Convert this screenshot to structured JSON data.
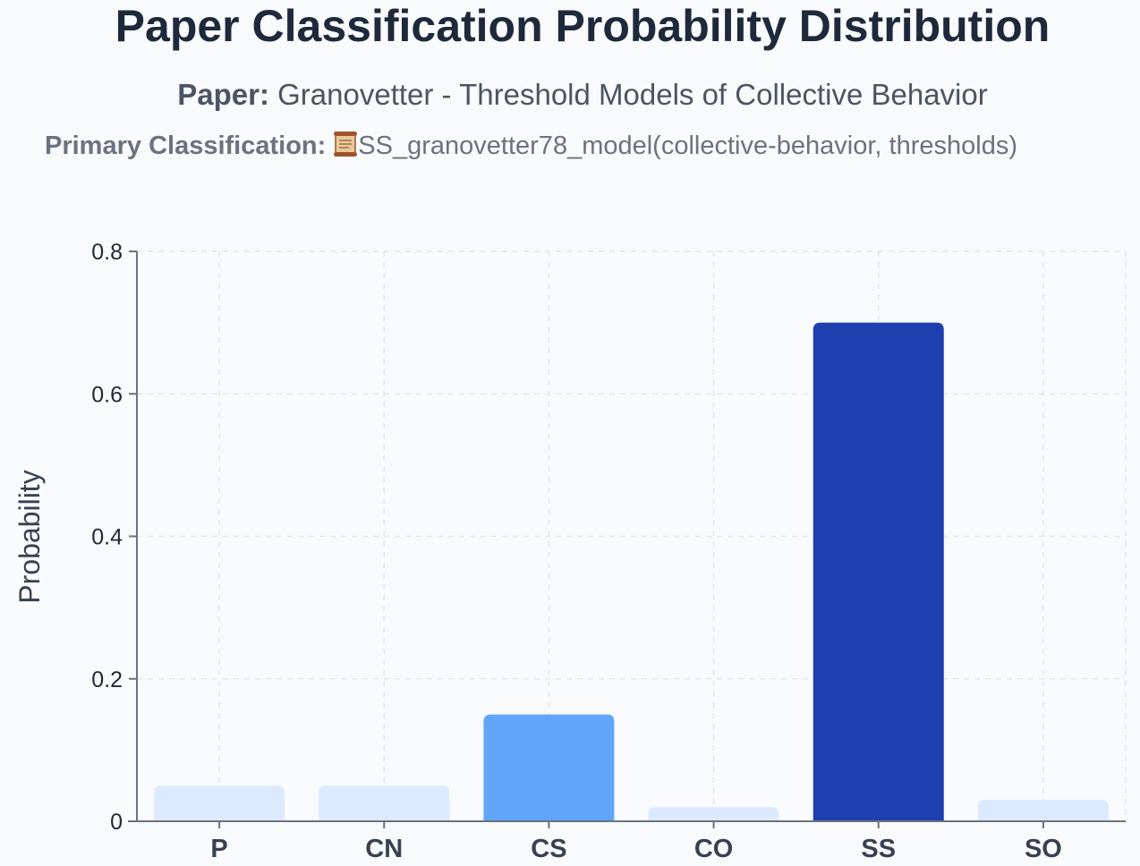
{
  "header": {
    "title": "Paper Classification Probability Distribution",
    "paper_label": "Paper:",
    "paper_name": "Granovetter - Threshold Models of Collective Behavior",
    "primary_label": "Primary Classification:",
    "primary_value": "SS_granovetter78_model(collective-behavior, thresholds)",
    "primary_icon": "scroll-icon"
  },
  "chart_data": {
    "type": "bar",
    "categories": [
      "P",
      "CN",
      "CS",
      "CO",
      "SS",
      "SO"
    ],
    "values": [
      0.05,
      0.05,
      0.15,
      0.02,
      0.7,
      0.03
    ],
    "ylabel": "Probability",
    "xlabel": "",
    "ylim": [
      0,
      0.8
    ],
    "yticks": [
      0,
      0.2,
      0.4,
      0.6,
      0.8
    ],
    "ytick_labels": [
      "0",
      "0.2",
      "0.4",
      "0.6",
      "0.8"
    ],
    "grid": true,
    "bar_colors": [
      "#dbeafe",
      "#dbeafe",
      "#60a5fa",
      "#dbeafe",
      "#1e40af",
      "#dbeafe"
    ],
    "colors": {
      "axis": "#6b7280",
      "grid": "#e5e7eb",
      "tick_text": "#1f2937",
      "category_text": "#374151",
      "ylabel_text": "#374151"
    }
  }
}
